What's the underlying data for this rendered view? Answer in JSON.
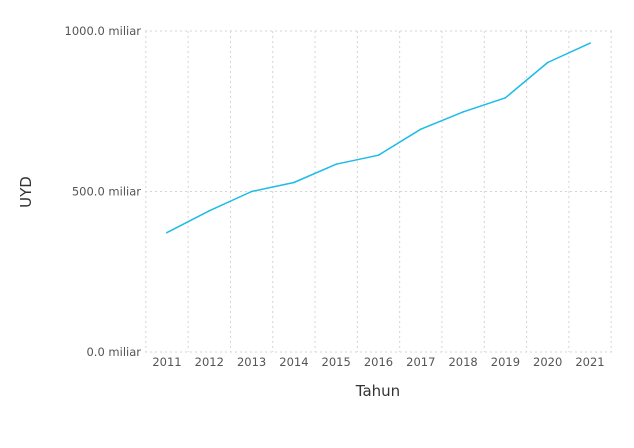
{
  "chart_data": {
    "type": "line",
    "title": "",
    "xlabel": "Tahun",
    "ylabel": "UYD",
    "x": [
      "2011",
      "2012",
      "2013",
      "2014",
      "2015",
      "2016",
      "2017",
      "2018",
      "2019",
      "2020",
      "2021"
    ],
    "series": [
      {
        "values": [
          372,
          440,
          500,
          528,
          585,
          613,
          694,
          748,
          792,
          902,
          962
        ]
      }
    ],
    "ylim": [
      0,
      1000
    ],
    "yticks": [
      0,
      500,
      1000
    ],
    "ytick_labels": [
      "0.0 miliar",
      "500.0 miliar",
      "1000.0 miliar"
    ],
    "grid": true,
    "legend": "none",
    "colors": {
      "line": "#1cbbe8",
      "grid": "#d4d4d4",
      "text": "#555555"
    }
  }
}
